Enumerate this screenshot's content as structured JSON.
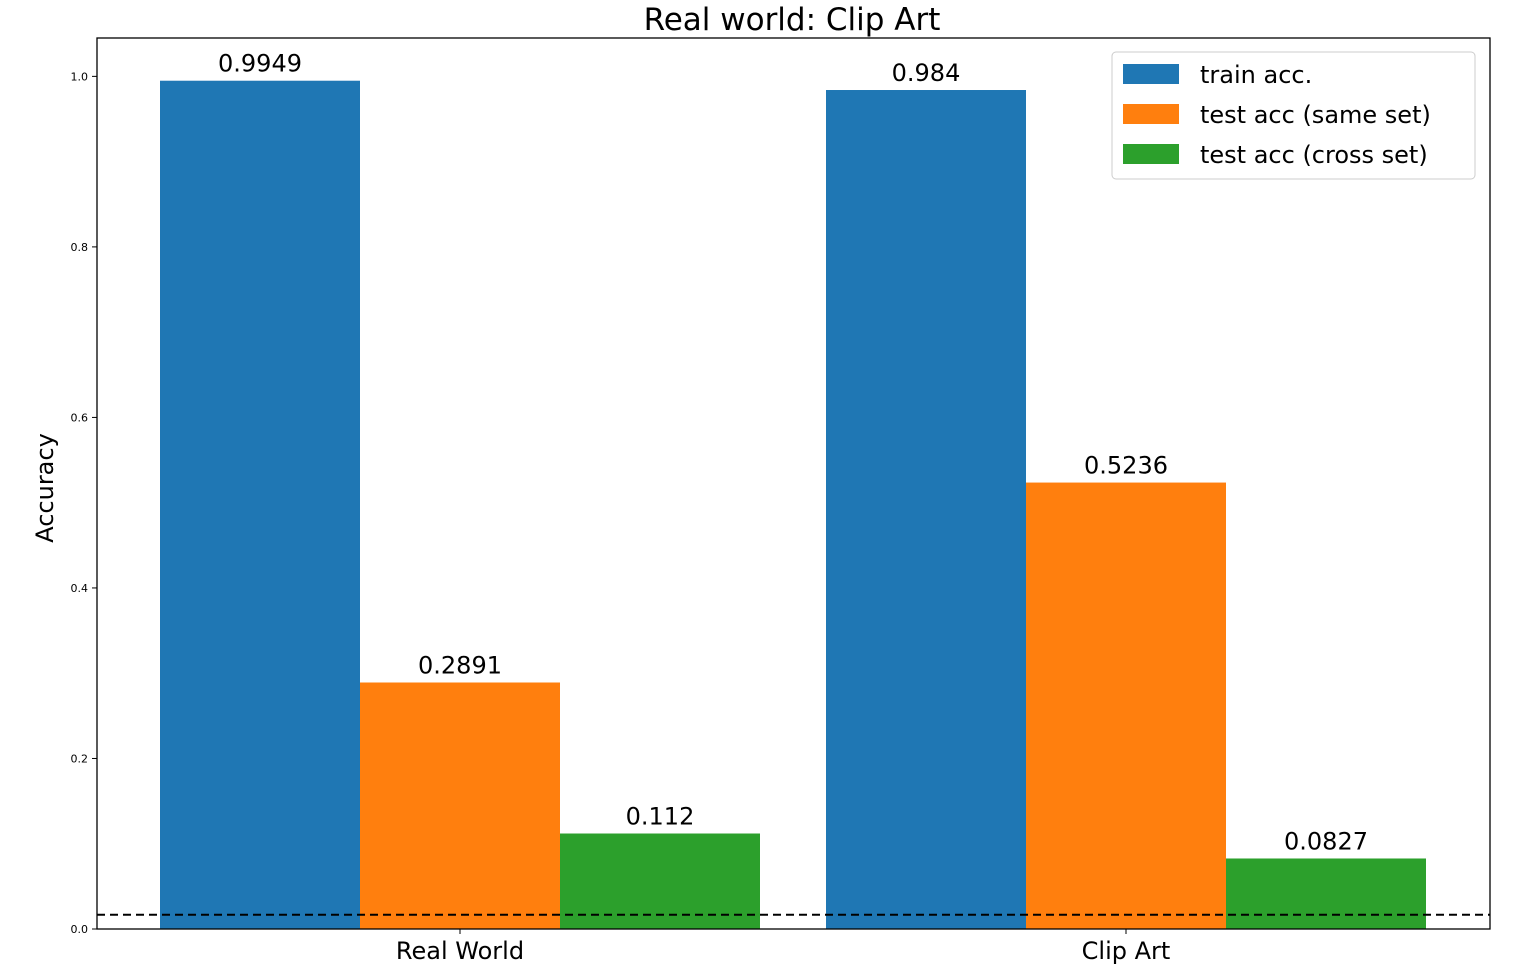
{
  "chart_data": {
    "type": "bar",
    "title": "Real world: Clip Art",
    "xlabel": "",
    "ylabel": "Accuracy",
    "categories": [
      "Real World",
      "Clip Art"
    ],
    "series": [
      {
        "name": "train acc.",
        "color": "#1f77b4",
        "values": [
          0.9949,
          0.984
        ],
        "labels": [
          "0.9949",
          "0.984"
        ]
      },
      {
        "name": "test acc (same set)",
        "color": "#ff7f0e",
        "values": [
          0.2891,
          0.5236
        ],
        "labels": [
          "0.2891",
          "0.5236"
        ]
      },
      {
        "name": "test acc (cross set)",
        "color": "#2ca02c",
        "values": [
          0.112,
          0.0827
        ],
        "labels": [
          "0.112",
          "0.0827"
        ]
      }
    ],
    "ylim": [
      0,
      1.045
    ],
    "yticks": [
      0.0,
      0.2,
      0.4,
      0.6,
      0.8,
      1.0
    ],
    "ytick_labels": [
      "0.0",
      "0.2",
      "0.4",
      "0.6",
      "0.8",
      "1.0"
    ],
    "reference_line": {
      "y": 0.0167,
      "style": "dashed",
      "color": "#000000"
    },
    "legend_position": "top-right",
    "grid": false
  }
}
